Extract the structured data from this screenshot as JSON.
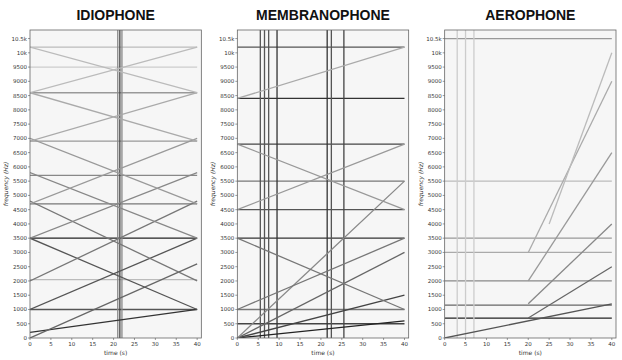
{
  "chart_data": [
    {
      "type": "line",
      "title": "IDIOPHONE",
      "x_label": "time (s)",
      "y_label": "frequency (Hz)",
      "xlim": [
        0,
        41
      ],
      "xticks": [
        0,
        5,
        10,
        15,
        20,
        25,
        30,
        35,
        40
      ],
      "ylim": [
        0,
        10800
      ],
      "yticks": [
        0,
        500,
        1000,
        1500,
        2000,
        2500,
        3000,
        3500,
        4000,
        4500,
        5000,
        5500,
        6000,
        6500,
        7000,
        7500,
        8000,
        8500,
        9000,
        9500,
        {
          "value": 10000,
          "label": "10k"
        },
        {
          "value": 10500,
          "label": "10.5k"
        }
      ],
      "grid": false,
      "series": [
        {
          "x": [
            0,
            40
          ],
          "values": [
            1000,
            1000
          ],
          "color": "#555555"
        },
        {
          "x": [
            0,
            40
          ],
          "values": [
            2050,
            2050
          ],
          "color": "#bbbbbb"
        },
        {
          "x": [
            0,
            40
          ],
          "values": [
            3500,
            3500
          ],
          "color": "#222222"
        },
        {
          "x": [
            0,
            40
          ],
          "values": [
            4700,
            4700
          ],
          "color": "#777777"
        },
        {
          "x": [
            0,
            40
          ],
          "values": [
            5700,
            5700
          ],
          "color": "#888888"
        },
        {
          "x": [
            0,
            40
          ],
          "values": [
            6900,
            6900
          ],
          "color": "#999999"
        },
        {
          "x": [
            0,
            40
          ],
          "values": [
            8600,
            8600
          ],
          "color": "#999999"
        },
        {
          "x": [
            0,
            40
          ],
          "values": [
            9500,
            9500
          ],
          "color": "#cccccc"
        },
        {
          "x": [
            0,
            40
          ],
          "values": [
            10200,
            10200
          ],
          "color": "#bbbbbb"
        },
        {
          "x": [
            21,
            21
          ],
          "values": [
            0,
            10800
          ],
          "color": "#888888"
        },
        {
          "x": [
            21.5,
            21.5
          ],
          "values": [
            0,
            10800
          ],
          "color": "#444444"
        },
        {
          "x": [
            22,
            22
          ],
          "values": [
            0,
            10800
          ],
          "color": "#888888"
        },
        {
          "x": [
            0,
            40
          ],
          "values": [
            200,
            1000
          ],
          "color": "#333333"
        },
        {
          "x": [
            0,
            40
          ],
          "values": [
            0,
            2600
          ],
          "color": "#666666"
        },
        {
          "x": [
            0,
            40
          ],
          "values": [
            1000,
            3500
          ],
          "color": "#555555"
        },
        {
          "x": [
            0,
            40
          ],
          "values": [
            3500,
            1000
          ],
          "color": "#555555"
        },
        {
          "x": [
            0,
            40
          ],
          "values": [
            2000,
            4800
          ],
          "color": "#777777"
        },
        {
          "x": [
            0,
            40
          ],
          "values": [
            4800,
            2000
          ],
          "color": "#777777"
        },
        {
          "x": [
            0,
            40
          ],
          "values": [
            3500,
            5800
          ],
          "color": "#888888"
        },
        {
          "x": [
            0,
            40
          ],
          "values": [
            5800,
            3500
          ],
          "color": "#888888"
        },
        {
          "x": [
            0,
            40
          ],
          "values": [
            4700,
            7000
          ],
          "color": "#999999"
        },
        {
          "x": [
            0,
            40
          ],
          "values": [
            7000,
            4700
          ],
          "color": "#999999"
        },
        {
          "x": [
            0,
            40
          ],
          "values": [
            6900,
            8600
          ],
          "color": "#aaaaaa"
        },
        {
          "x": [
            0,
            40
          ],
          "values": [
            8600,
            6900
          ],
          "color": "#aaaaaa"
        },
        {
          "x": [
            0,
            40
          ],
          "values": [
            8600,
            10200
          ],
          "color": "#bbbbbb"
        },
        {
          "x": [
            0,
            40
          ],
          "values": [
            10200,
            8600
          ],
          "color": "#bbbbbb"
        }
      ]
    },
    {
      "type": "line",
      "title": "MEMBRANOPHONE",
      "x_label": "time (s)",
      "y_label": "frequency (Hz)",
      "xlim": [
        0,
        41
      ],
      "xticks": [
        0,
        5,
        10,
        15,
        20,
        25,
        30,
        35,
        40
      ],
      "ylim": [
        0,
        10800
      ],
      "yticks": [
        0,
        500,
        1000,
        1500,
        2000,
        2500,
        3000,
        3500,
        4000,
        4500,
        5000,
        5500,
        6000,
        6500,
        7000,
        7500,
        8000,
        8500,
        9000,
        9500,
        {
          "value": 10000,
          "label": "10k"
        },
        {
          "value": 10500,
          "label": "10.5k"
        }
      ],
      "grid": false,
      "series": [
        {
          "x": [
            0,
            40
          ],
          "values": [
            500,
            500
          ],
          "color": "#444444"
        },
        {
          "x": [
            0,
            40
          ],
          "values": [
            1000,
            1000
          ],
          "color": "#777777"
        },
        {
          "x": [
            0,
            40
          ],
          "values": [
            3500,
            3500
          ],
          "color": "#333333"
        },
        {
          "x": [
            0,
            40
          ],
          "values": [
            4500,
            4500
          ],
          "color": "#555555"
        },
        {
          "x": [
            0,
            40
          ],
          "values": [
            5500,
            5500
          ],
          "color": "#777777"
        },
        {
          "x": [
            0,
            40
          ],
          "values": [
            6800,
            6800
          ],
          "color": "#444444"
        },
        {
          "x": [
            0,
            40
          ],
          "values": [
            8400,
            8400
          ],
          "color": "#333333"
        },
        {
          "x": [
            0,
            40
          ],
          "values": [
            10200,
            10200
          ],
          "color": "#555555"
        },
        {
          "x": [
            5.5,
            5.5
          ],
          "values": [
            0,
            10800
          ],
          "color": "#555555"
        },
        {
          "x": [
            6.5,
            6.5
          ],
          "values": [
            0,
            10800
          ],
          "color": "#555555"
        },
        {
          "x": [
            7.5,
            7.5
          ],
          "values": [
            0,
            10800
          ],
          "color": "#555555"
        },
        {
          "x": [
            9.5,
            9.5
          ],
          "values": [
            0,
            10800
          ],
          "color": "#333333"
        },
        {
          "x": [
            21.5,
            21.5
          ],
          "values": [
            0,
            10800
          ],
          "color": "#333333"
        },
        {
          "x": [
            22.5,
            22.5
          ],
          "values": [
            0,
            10800
          ],
          "color": "#555555"
        },
        {
          "x": [
            25.5,
            25.5
          ],
          "values": [
            0,
            10800
          ],
          "color": "#444444"
        },
        {
          "x": [
            0,
            40
          ],
          "values": [
            0,
            600
          ],
          "color": "#222222"
        },
        {
          "x": [
            0,
            40
          ],
          "values": [
            0,
            1500
          ],
          "color": "#444444"
        },
        {
          "x": [
            0,
            40
          ],
          "values": [
            0,
            3000
          ],
          "color": "#666666"
        },
        {
          "x": [
            0,
            40
          ],
          "values": [
            0,
            5500
          ],
          "color": "#888888"
        },
        {
          "x": [
            0,
            40
          ],
          "values": [
            1000,
            3500
          ],
          "color": "#777777"
        },
        {
          "x": [
            0,
            40
          ],
          "values": [
            3500,
            1000
          ],
          "color": "#777777"
        },
        {
          "x": [
            0,
            40
          ],
          "values": [
            4500,
            6800
          ],
          "color": "#999999"
        },
        {
          "x": [
            0,
            40
          ],
          "values": [
            6800,
            4500
          ],
          "color": "#999999"
        },
        {
          "x": [
            0,
            40
          ],
          "values": [
            8400,
            10200
          ],
          "color": "#aaaaaa"
        }
      ]
    },
    {
      "type": "line",
      "title": "AEROPHONE",
      "x_label": "time (s)",
      "y_label": "frequency (Hz)",
      "xlim": [
        0,
        41
      ],
      "xticks": [
        0,
        5,
        10,
        15,
        20,
        25,
        30,
        35,
        40
      ],
      "ylim": [
        0,
        10800
      ],
      "yticks": [
        0,
        500,
        1000,
        1500,
        2000,
        2500,
        3000,
        3500,
        4000,
        4500,
        5000,
        5500,
        6000,
        6500,
        7000,
        7500,
        8000,
        8500,
        9000,
        9500,
        {
          "value": 10000,
          "label": "10k"
        },
        {
          "value": 10500,
          "label": "10.5k"
        }
      ],
      "grid": false,
      "series": [
        {
          "x": [
            0,
            40
          ],
          "values": [
            700,
            700
          ],
          "color": "#222222"
        },
        {
          "x": [
            0,
            40
          ],
          "values": [
            1150,
            1150
          ],
          "color": "#666666"
        },
        {
          "x": [
            0,
            40
          ],
          "values": [
            2000,
            2000
          ],
          "color": "#888888"
        },
        {
          "x": [
            0,
            40
          ],
          "values": [
            3000,
            3000
          ],
          "color": "#aaaaaa"
        },
        {
          "x": [
            0,
            40
          ],
          "values": [
            3500,
            3500
          ],
          "color": "#999999"
        },
        {
          "x": [
            0,
            40
          ],
          "values": [
            5500,
            5500
          ],
          "color": "#bbbbbb"
        },
        {
          "x": [
            0,
            40
          ],
          "values": [
            10500,
            10500
          ],
          "color": "#999999"
        },
        {
          "x": [
            3,
            3
          ],
          "values": [
            0,
            10800
          ],
          "color": "#cccccc"
        },
        {
          "x": [
            5,
            5
          ],
          "values": [
            0,
            10800
          ],
          "color": "#cccccc"
        },
        {
          "x": [
            7,
            7
          ],
          "values": [
            0,
            10800
          ],
          "color": "#cccccc"
        },
        {
          "x": [
            0,
            40
          ],
          "values": [
            0,
            1200
          ],
          "color": "#555555"
        },
        {
          "x": [
            20,
            40
          ],
          "values": [
            700,
            2500
          ],
          "color": "#666666"
        },
        {
          "x": [
            20,
            40
          ],
          "values": [
            1200,
            4000
          ],
          "color": "#888888"
        },
        {
          "x": [
            20,
            40
          ],
          "values": [
            2000,
            6500
          ],
          "color": "#999999"
        },
        {
          "x": [
            20,
            40
          ],
          "values": [
            3000,
            9000
          ],
          "color": "#aaaaaa"
        },
        {
          "x": [
            25,
            40
          ],
          "values": [
            4000,
            10000
          ],
          "color": "#bbbbbb"
        }
      ]
    }
  ]
}
